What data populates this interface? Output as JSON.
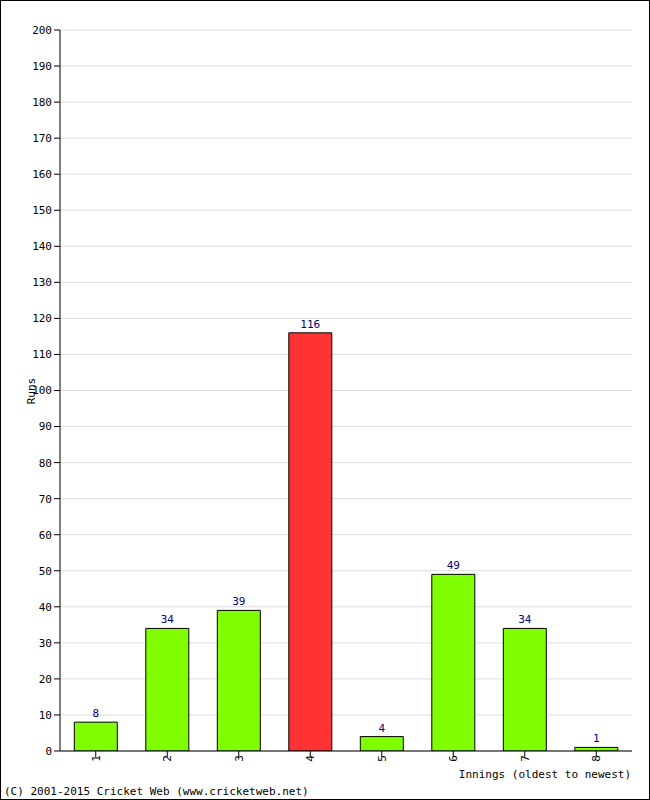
{
  "chart_data": {
    "type": "bar",
    "categories": [
      "1",
      "2",
      "3",
      "4",
      "5",
      "6",
      "7",
      "8"
    ],
    "values": [
      8,
      34,
      39,
      116,
      4,
      49,
      34,
      1
    ],
    "colors": [
      "#80ff00",
      "#80ff00",
      "#80ff00",
      "#ff3333",
      "#80ff00",
      "#80ff00",
      "#80ff00",
      "#80ff00"
    ],
    "x_label": "Innings (oldest to newest)",
    "y_label": "Runs",
    "annotation": "(C) 2001-2015 Cricket Web (www.cricketweb.net)",
    "ylim": [
      0,
      200
    ],
    "yticks": [
      0,
      10,
      20,
      30,
      40,
      50,
      60,
      70,
      80,
      90,
      100,
      110,
      120,
      130,
      140,
      150,
      160,
      170,
      180,
      190,
      200
    ],
    "grid": true,
    "data_labels": true
  }
}
